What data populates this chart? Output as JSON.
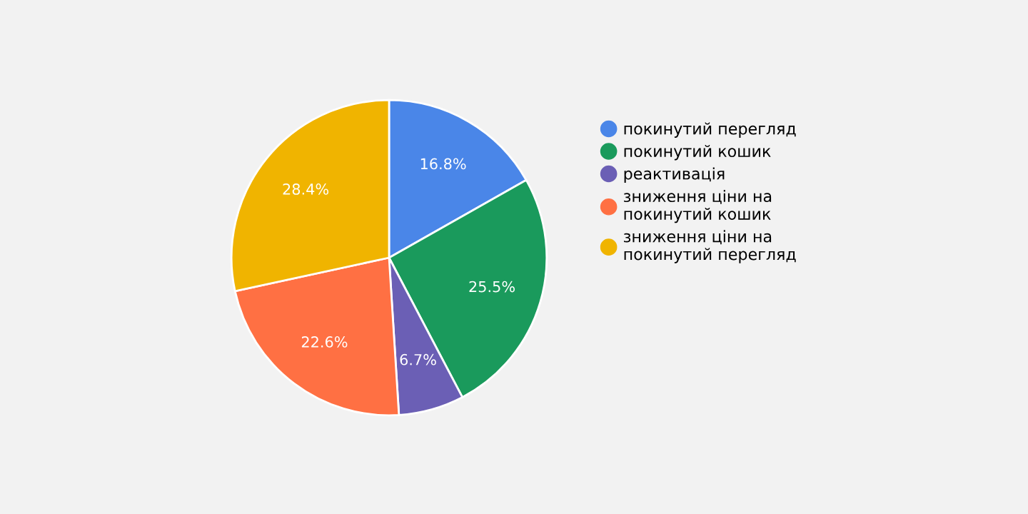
{
  "chart_data": {
    "type": "pie",
    "categories": [
      "покинутий перегляд",
      "покинутий кошик",
      "реактивація",
      "зниження ціни на покинутий кошик",
      "зниження ціни на покинутий перегляд"
    ],
    "values": [
      16.8,
      25.5,
      6.7,
      22.6,
      28.4
    ],
    "colors": [
      "#4a86e8",
      "#1a9a5c",
      "#6b5fb5",
      "#ff7043",
      "#f0b400"
    ],
    "value_labels": [
      "16.8%",
      "25.5%",
      "6.7%",
      "22.6%",
      "28.4%"
    ],
    "legend": "right"
  }
}
